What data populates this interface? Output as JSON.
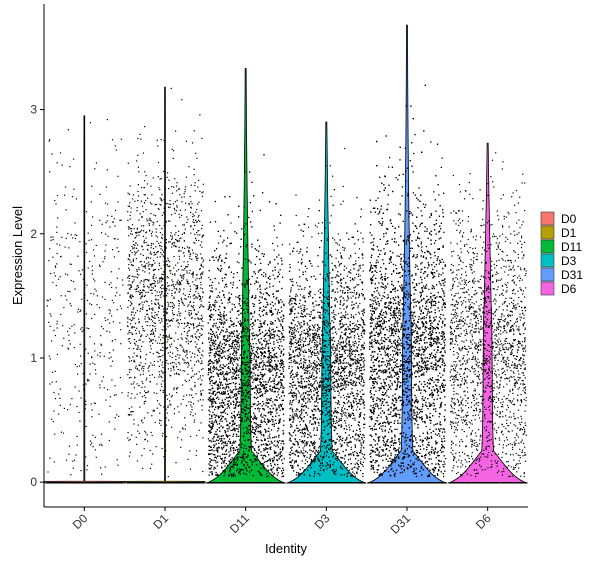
{
  "chart_data": {
    "type": "violin",
    "title": "",
    "xlabel": "Identity",
    "ylabel": "Expression Level",
    "ylim": [
      -0.2,
      3.85
    ],
    "y_ticks": [
      0,
      1,
      2,
      3
    ],
    "grid": false,
    "legend_position": "right",
    "categories": [
      "D0",
      "D1",
      "D11",
      "D3",
      "D31",
      "D6"
    ],
    "series": [
      {
        "name": "D0",
        "color": "#F8766D",
        "max": 2.95,
        "point_count": 700,
        "nonzero_fraction": 0.55,
        "spread_center": 1.3,
        "spread": 0.65
      },
      {
        "name": "D1",
        "color": "#B79F00",
        "max": 3.18,
        "point_count": 2600,
        "nonzero_fraction": 0.6,
        "spread_center": 1.45,
        "spread": 0.55
      },
      {
        "name": "D11",
        "color": "#00BA38",
        "max": 3.33,
        "point_count": 5200,
        "nonzero_fraction": 0.9,
        "spread_center": 0.85,
        "spread": 0.5
      },
      {
        "name": "D3",
        "color": "#00BFC4",
        "max": 2.9,
        "point_count": 4300,
        "nonzero_fraction": 0.88,
        "spread_center": 0.9,
        "spread": 0.5
      },
      {
        "name": "D31",
        "color": "#619CFF",
        "max": 3.68,
        "point_count": 6200,
        "nonzero_fraction": 0.9,
        "spread_center": 1.05,
        "spread": 0.6
      },
      {
        "name": "D6",
        "color": "#F564E3",
        "max": 2.73,
        "point_count": 2200,
        "nonzero_fraction": 0.82,
        "spread_center": 1.05,
        "spread": 0.55
      }
    ]
  }
}
